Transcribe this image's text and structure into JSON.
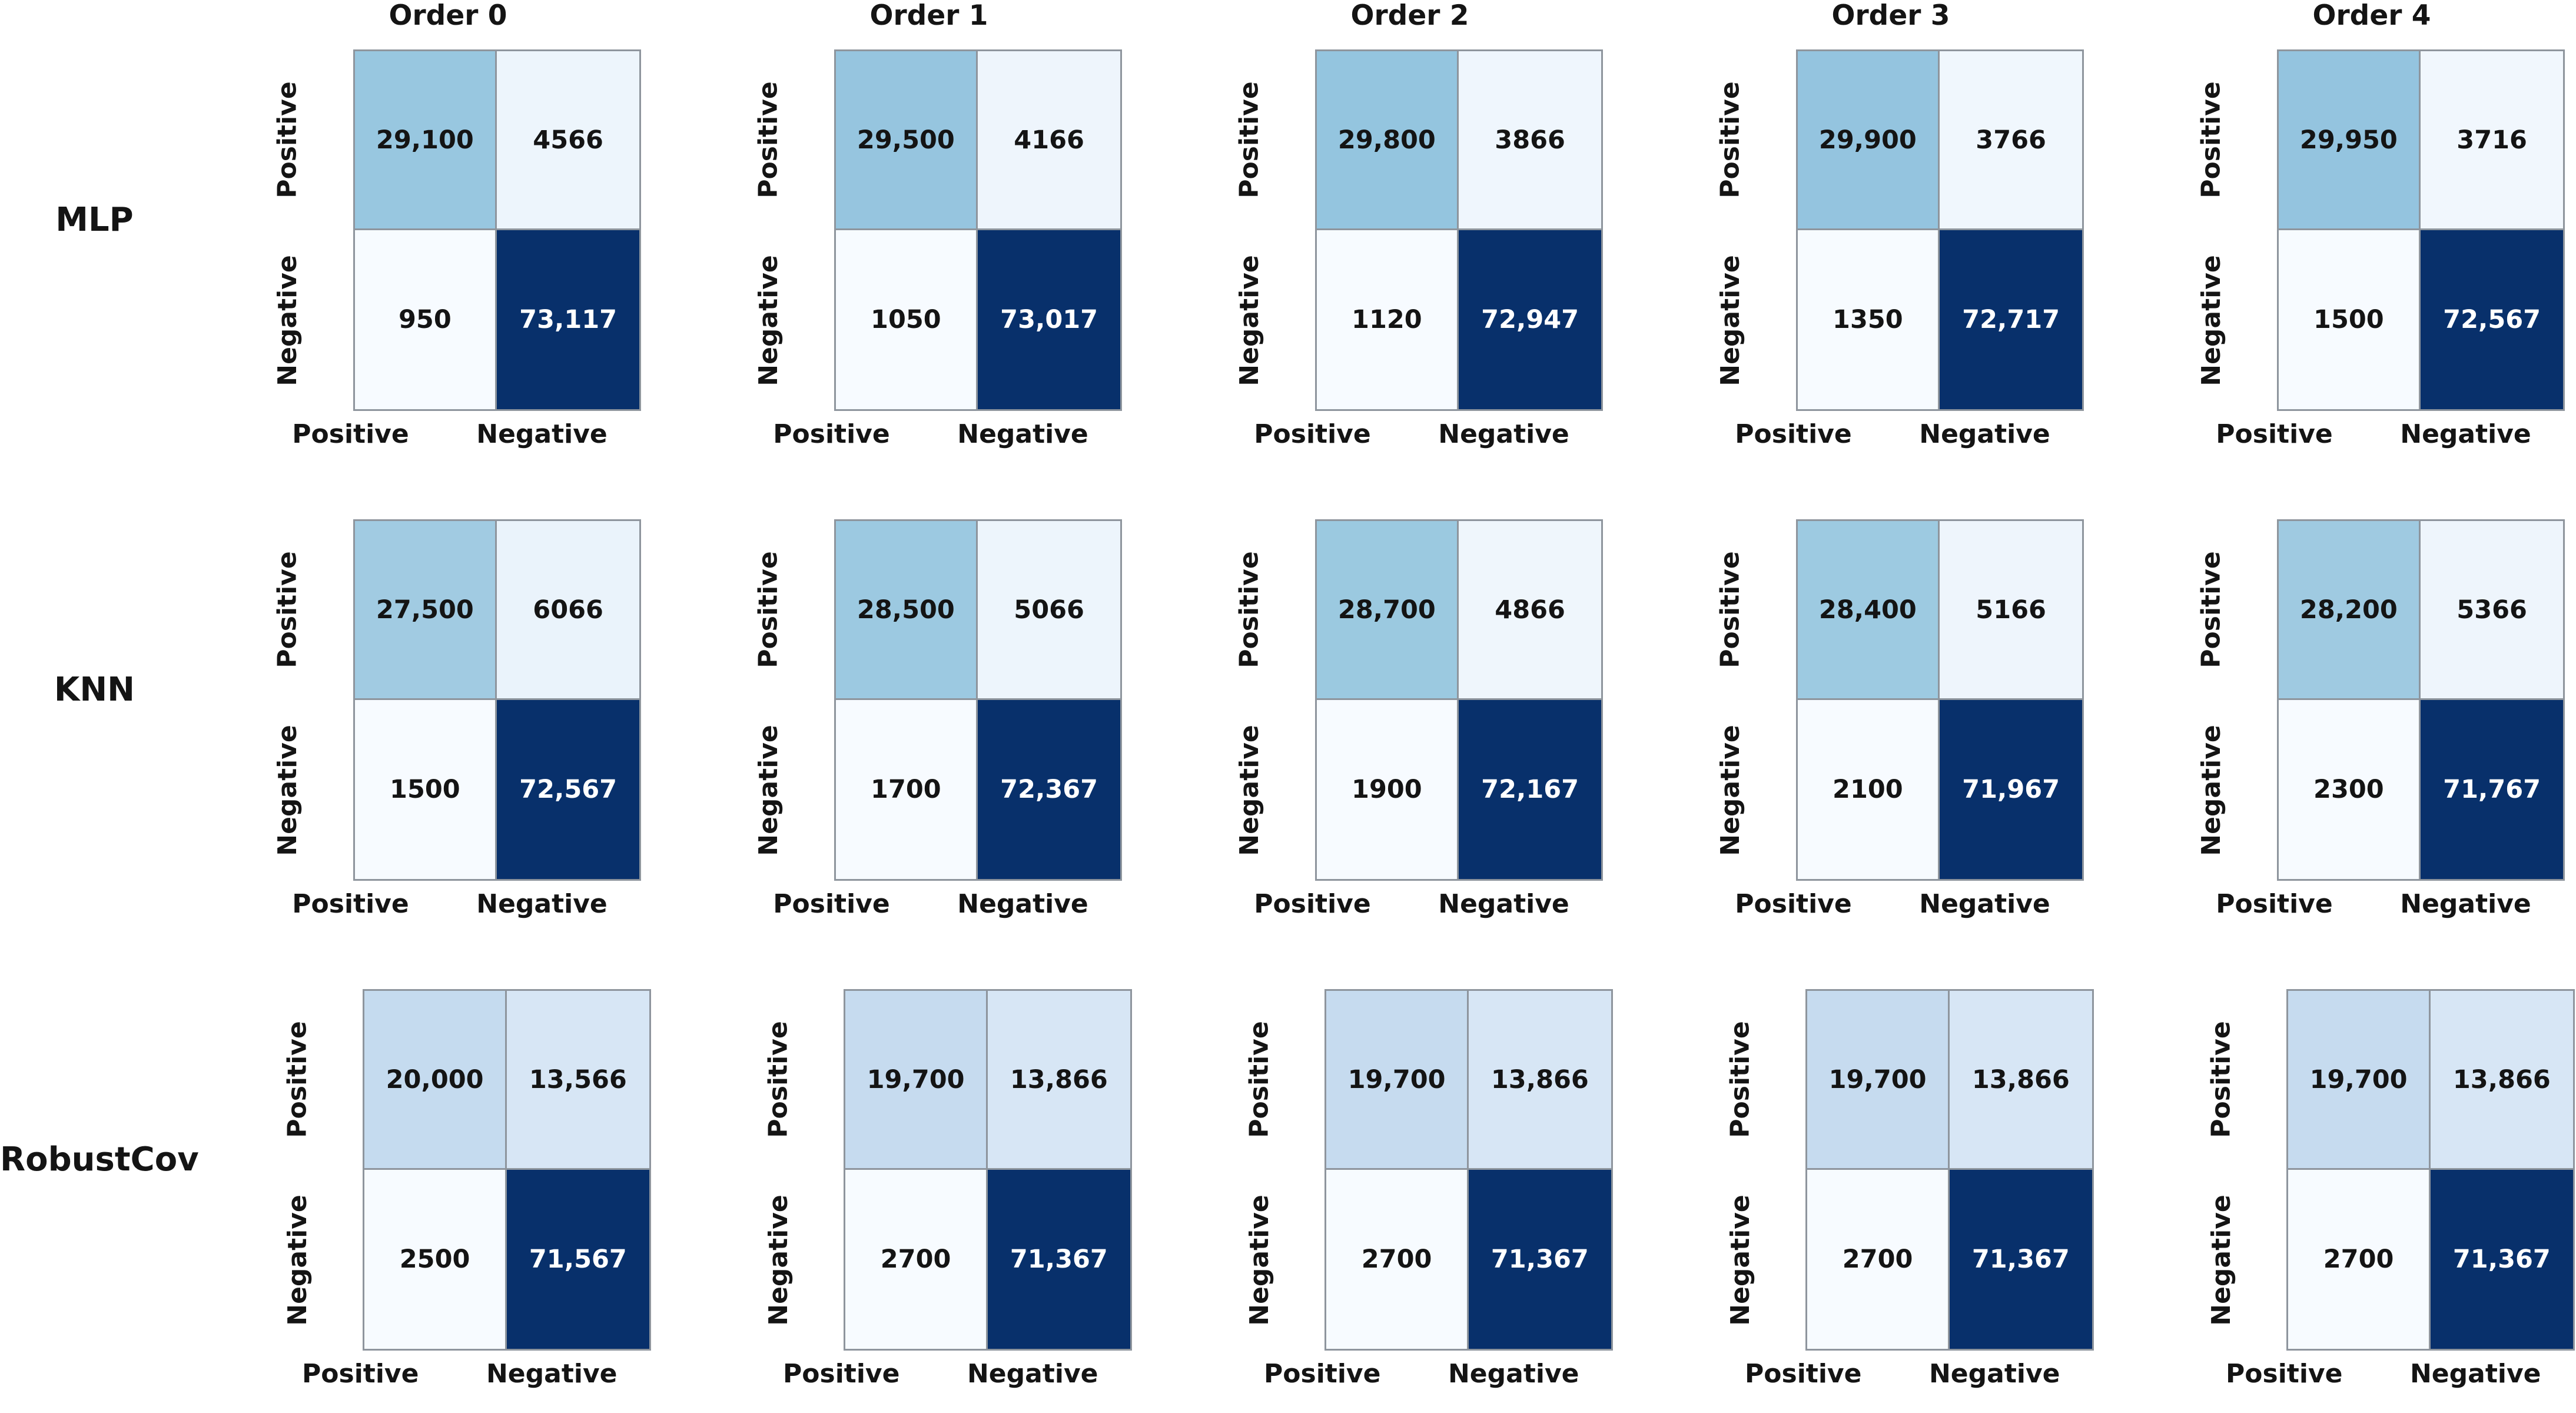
{
  "figure": {
    "column_titles": [
      "Order 0",
      "Order 1",
      "Order 2",
      "Order 3",
      "Order 4"
    ],
    "row_labels": [
      "MLP",
      "KNN",
      "RobustCov"
    ],
    "x_tick_labels": [
      "Positive",
      "Negative"
    ],
    "y_tick_labels": [
      "Positive",
      "Negative"
    ],
    "colors": {
      "background": "#ffffff",
      "grid_line": "#8e959d",
      "text_dark": "#141414",
      "text_light": "#ffffff",
      "colormap_name": "Blues",
      "colormap_stops": [
        "#f7fbff",
        "#deebf7",
        "#c6dbef",
        "#9ecae1",
        "#6baed6",
        "#4292c6",
        "#2171b5",
        "#08519c",
        "#08306b"
      ]
    }
  },
  "chart_data": {
    "type": "heatmap",
    "grid": "3 models x 5 orders, each a 2x2 confusion matrix",
    "normalization": "per-matrix min-max onto Blues colormap",
    "legend_position": "none",
    "column_titles": [
      "Order 0",
      "Order 1",
      "Order 2",
      "Order 3",
      "Order 4"
    ],
    "row_models": [
      "MLP",
      "KNN",
      "RobustCov"
    ],
    "x_tick_labels": [
      "Positive",
      "Negative"
    ],
    "y_tick_labels": [
      "Positive",
      "Negative"
    ],
    "matrices": [
      {
        "model": "MLP",
        "order": "Order 0",
        "values": [
          [
            29100,
            4566
          ],
          [
            950,
            73117
          ]
        ],
        "labels": [
          [
            "29,100",
            "4566"
          ],
          [
            "950",
            "73,117"
          ]
        ]
      },
      {
        "model": "MLP",
        "order": "Order 1",
        "values": [
          [
            29500,
            4166
          ],
          [
            1050,
            73017
          ]
        ],
        "labels": [
          [
            "29,500",
            "4166"
          ],
          [
            "1050",
            "73,017"
          ]
        ]
      },
      {
        "model": "MLP",
        "order": "Order 2",
        "values": [
          [
            29800,
            3866
          ],
          [
            1120,
            72947
          ]
        ],
        "labels": [
          [
            "29,800",
            "3866"
          ],
          [
            "1120",
            "72,947"
          ]
        ]
      },
      {
        "model": "MLP",
        "order": "Order 3",
        "values": [
          [
            29900,
            3766
          ],
          [
            1350,
            72717
          ]
        ],
        "labels": [
          [
            "29,900",
            "3766"
          ],
          [
            "1350",
            "72,717"
          ]
        ]
      },
      {
        "model": "MLP",
        "order": "Order 4",
        "values": [
          [
            29950,
            3716
          ],
          [
            1500,
            72567
          ]
        ],
        "labels": [
          [
            "29,950",
            "3716"
          ],
          [
            "1500",
            "72,567"
          ]
        ]
      },
      {
        "model": "KNN",
        "order": "Order 0",
        "values": [
          [
            27500,
            6066
          ],
          [
            1500,
            72567
          ]
        ],
        "labels": [
          [
            "27,500",
            "6066"
          ],
          [
            "1500",
            "72,567"
          ]
        ]
      },
      {
        "model": "KNN",
        "order": "Order 1",
        "values": [
          [
            28500,
            5066
          ],
          [
            1700,
            72367
          ]
        ],
        "labels": [
          [
            "28,500",
            "5066"
          ],
          [
            "1700",
            "72,367"
          ]
        ]
      },
      {
        "model": "KNN",
        "order": "Order 2",
        "values": [
          [
            28700,
            4866
          ],
          [
            1900,
            72167
          ]
        ],
        "labels": [
          [
            "28,700",
            "4866"
          ],
          [
            "1900",
            "72,167"
          ]
        ]
      },
      {
        "model": "KNN",
        "order": "Order 3",
        "values": [
          [
            28400,
            5166
          ],
          [
            2100,
            71967
          ]
        ],
        "labels": [
          [
            "28,400",
            "5166"
          ],
          [
            "2100",
            "71,967"
          ]
        ]
      },
      {
        "model": "KNN",
        "order": "Order 4",
        "values": [
          [
            28200,
            5366
          ],
          [
            2300,
            71767
          ]
        ],
        "labels": [
          [
            "28,200",
            "5366"
          ],
          [
            "2300",
            "71,767"
          ]
        ]
      },
      {
        "model": "RobustCov",
        "order": "Order 0",
        "values": [
          [
            20000,
            13566
          ],
          [
            2500,
            71567
          ]
        ],
        "labels": [
          [
            "20,000",
            "13,566"
          ],
          [
            "2500",
            "71,567"
          ]
        ]
      },
      {
        "model": "RobustCov",
        "order": "Order 1",
        "values": [
          [
            19700,
            13866
          ],
          [
            2700,
            71367
          ]
        ],
        "labels": [
          [
            "19,700",
            "13,866"
          ],
          [
            "2700",
            "71,367"
          ]
        ]
      },
      {
        "model": "RobustCov",
        "order": "Order 2",
        "values": [
          [
            19700,
            13866
          ],
          [
            2700,
            71367
          ]
        ],
        "labels": [
          [
            "19,700",
            "13,866"
          ],
          [
            "2700",
            "71,367"
          ]
        ]
      },
      {
        "model": "RobustCov",
        "order": "Order 3",
        "values": [
          [
            19700,
            13866
          ],
          [
            2700,
            71367
          ]
        ],
        "labels": [
          [
            "19,700",
            "13,866"
          ],
          [
            "2700",
            "71,367"
          ]
        ]
      },
      {
        "model": "RobustCov",
        "order": "Order 4",
        "values": [
          [
            19700,
            13866
          ],
          [
            2700,
            71367
          ]
        ],
        "labels": [
          [
            "19,700",
            "13,866"
          ],
          [
            "2700",
            "71,367"
          ]
        ]
      }
    ]
  }
}
